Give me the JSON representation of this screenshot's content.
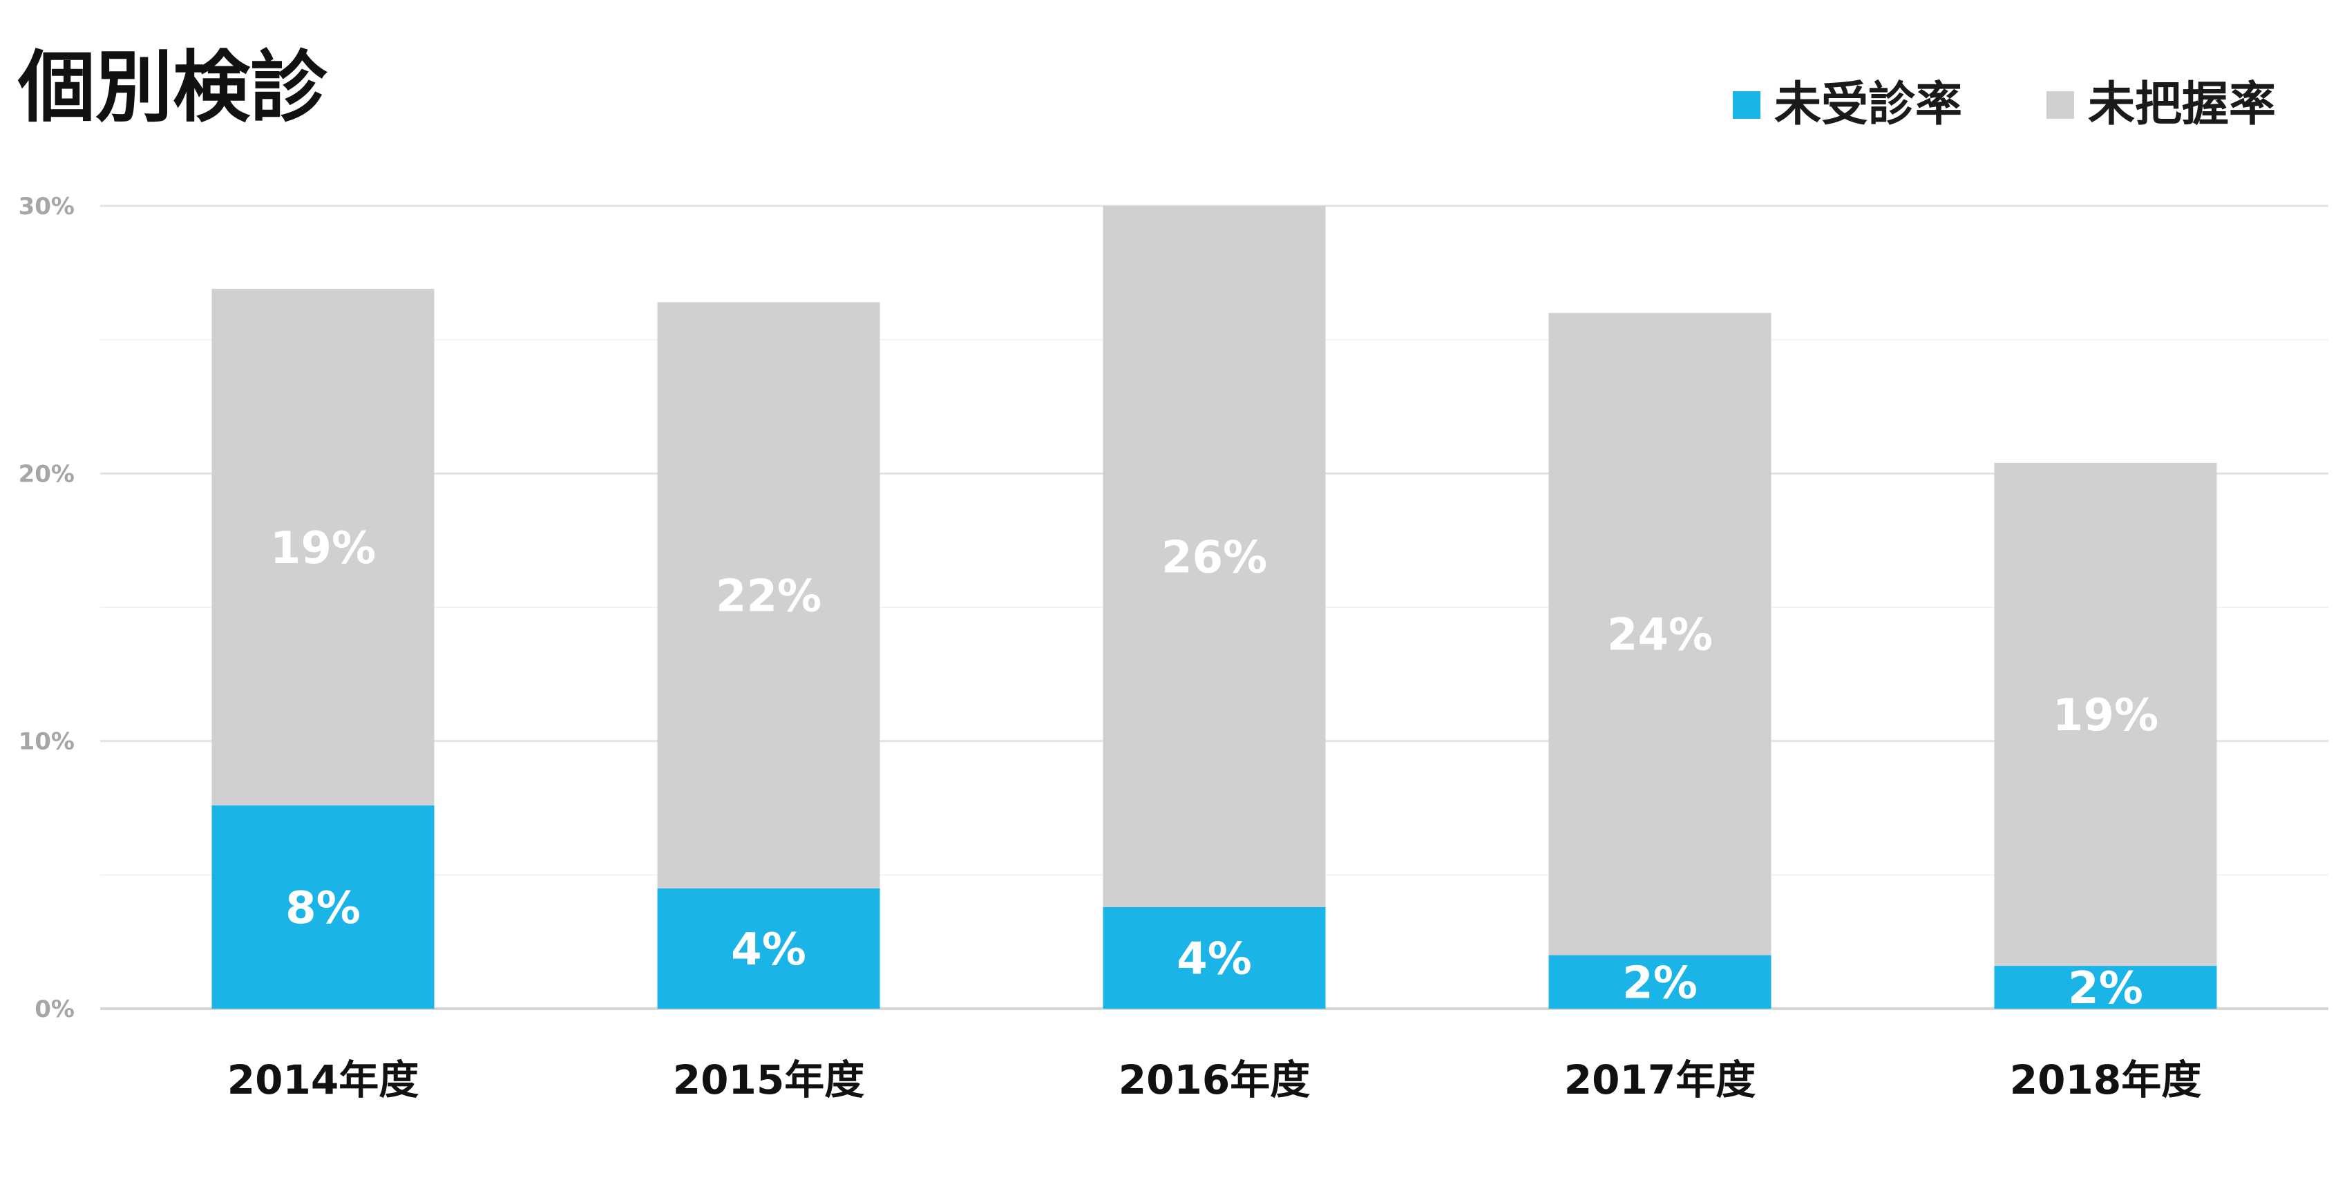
{
  "chart_data": {
    "type": "bar",
    "stacked": true,
    "title": "個別検診",
    "xlabel": "",
    "ylabel": "",
    "categories": [
      "2014年度",
      "2015年度",
      "2016年度",
      "2017年度",
      "2018年度"
    ],
    "series": [
      {
        "name": "未受診率",
        "color": "#1ab4e6",
        "values": [
          7.6,
          4.5,
          3.8,
          2.0,
          1.6
        ],
        "labels": [
          "8%",
          "4%",
          "4%",
          "2%",
          "2%"
        ]
      },
      {
        "name": "未把握率",
        "color": "#d0cfd1",
        "values": [
          19.3,
          21.9,
          26.2,
          24.0,
          18.8
        ],
        "labels": [
          "19%",
          "22%",
          "26%",
          "24%",
          "19%"
        ]
      }
    ],
    "ylim": [
      0,
      30
    ],
    "yticks": [
      0,
      10,
      20,
      30
    ],
    "ytick_labels": [
      "0%",
      "10%",
      "20%",
      "30%"
    ],
    "grid": true,
    "minor_grid": true,
    "legend_position": "top-right"
  }
}
